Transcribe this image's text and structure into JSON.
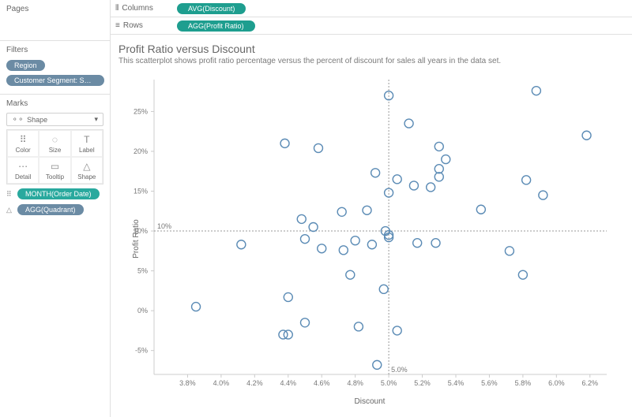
{
  "panels": {
    "pages": {
      "title": "Pages"
    },
    "filters": {
      "title": "Filters",
      "items": [
        {
          "label": "Region",
          "style": "blue"
        },
        {
          "label": "Customer Segment: Small Busin...",
          "style": "blue"
        }
      ]
    },
    "marks": {
      "title": "Marks",
      "selector": {
        "label": "Shape",
        "icon": "⚬⚬"
      },
      "cards": [
        {
          "key": "color",
          "label": "Color",
          "icon": "⠿"
        },
        {
          "key": "size",
          "label": "Size",
          "icon": "◌"
        },
        {
          "key": "label",
          "label": "Label",
          "icon": "T"
        },
        {
          "key": "detail",
          "label": "Detail",
          "icon": "⋯"
        },
        {
          "key": "tooltip",
          "label": "Tooltip",
          "icon": "▭"
        },
        {
          "key": "shape",
          "label": "Shape",
          "icon": "△"
        }
      ],
      "pills": [
        {
          "label": "MONTH(Order Date)",
          "style": "teal",
          "icon": "⠿"
        },
        {
          "label": "AGG(Quadrant)",
          "style": "blue",
          "icon": "△"
        }
      ]
    }
  },
  "shelves": {
    "columns": {
      "label": "Columns",
      "icon": "⦀",
      "pill": "AVG(Discount)"
    },
    "rows": {
      "label": "Rows",
      "icon": "≡",
      "pill": "AGG(Profit Ratio)"
    }
  },
  "chart": {
    "type": "scatter",
    "title": "Profit Ratio versus Discount",
    "subtitle": "This scatterplot shows profit ratio percentage versus the percent of discount for sales all years in the data set.",
    "x_label": "Discount",
    "y_label": "Profit Ratio",
    "xlim": [
      3.6,
      6.3
    ],
    "ylim": [
      -8,
      29
    ],
    "x_ticks": [
      3.8,
      4.0,
      4.2,
      4.4,
      4.6,
      4.8,
      5.0,
      5.2,
      5.4,
      5.6,
      5.8,
      6.0,
      6.2
    ],
    "x_tick_fmt": "pct1",
    "y_ticks": [
      -5,
      0,
      5,
      10,
      15,
      20,
      25
    ],
    "y_tick_fmt": "pct0",
    "ref_v": {
      "x": 5.0,
      "label": "5.0%"
    },
    "ref_h": {
      "y": 10,
      "label": "10%"
    },
    "marker": {
      "r": 5.5,
      "stroke": "#5b8bb5",
      "fill": "none"
    },
    "background_color": "#ffffff",
    "axis_color": "#cccccc",
    "tick_fontsize": 9,
    "label_fontsize": 10,
    "points": [
      [
        3.85,
        0.5
      ],
      [
        4.12,
        8.3
      ],
      [
        4.38,
        21.0
      ],
      [
        4.37,
        -3.0
      ],
      [
        4.4,
        -3.0
      ],
      [
        4.4,
        1.7
      ],
      [
        4.48,
        11.5
      ],
      [
        4.5,
        9.0
      ],
      [
        4.5,
        -1.5
      ],
      [
        4.55,
        10.5
      ],
      [
        4.58,
        20.4
      ],
      [
        4.6,
        7.8
      ],
      [
        4.72,
        12.4
      ],
      [
        4.73,
        7.6
      ],
      [
        4.77,
        4.5
      ],
      [
        4.8,
        8.8
      ],
      [
        4.82,
        -2.0
      ],
      [
        4.87,
        12.6
      ],
      [
        4.9,
        8.3
      ],
      [
        4.92,
        17.3
      ],
      [
        4.93,
        -6.8
      ],
      [
        4.97,
        2.7
      ],
      [
        4.98,
        10.0
      ],
      [
        5.0,
        9.2
      ],
      [
        5.0,
        9.5
      ],
      [
        5.0,
        14.8
      ],
      [
        5.0,
        27.0
      ],
      [
        5.05,
        16.5
      ],
      [
        5.05,
        -2.5
      ],
      [
        5.12,
        23.5
      ],
      [
        5.15,
        15.7
      ],
      [
        5.17,
        8.5
      ],
      [
        5.25,
        15.5
      ],
      [
        5.28,
        8.5
      ],
      [
        5.3,
        16.8
      ],
      [
        5.3,
        17.8
      ],
      [
        5.3,
        20.6
      ],
      [
        5.34,
        19.0
      ],
      [
        5.55,
        12.7
      ],
      [
        5.72,
        7.5
      ],
      [
        5.8,
        4.5
      ],
      [
        5.82,
        16.4
      ],
      [
        5.88,
        27.6
      ],
      [
        5.92,
        14.5
      ],
      [
        6.18,
        22.0
      ]
    ]
  }
}
